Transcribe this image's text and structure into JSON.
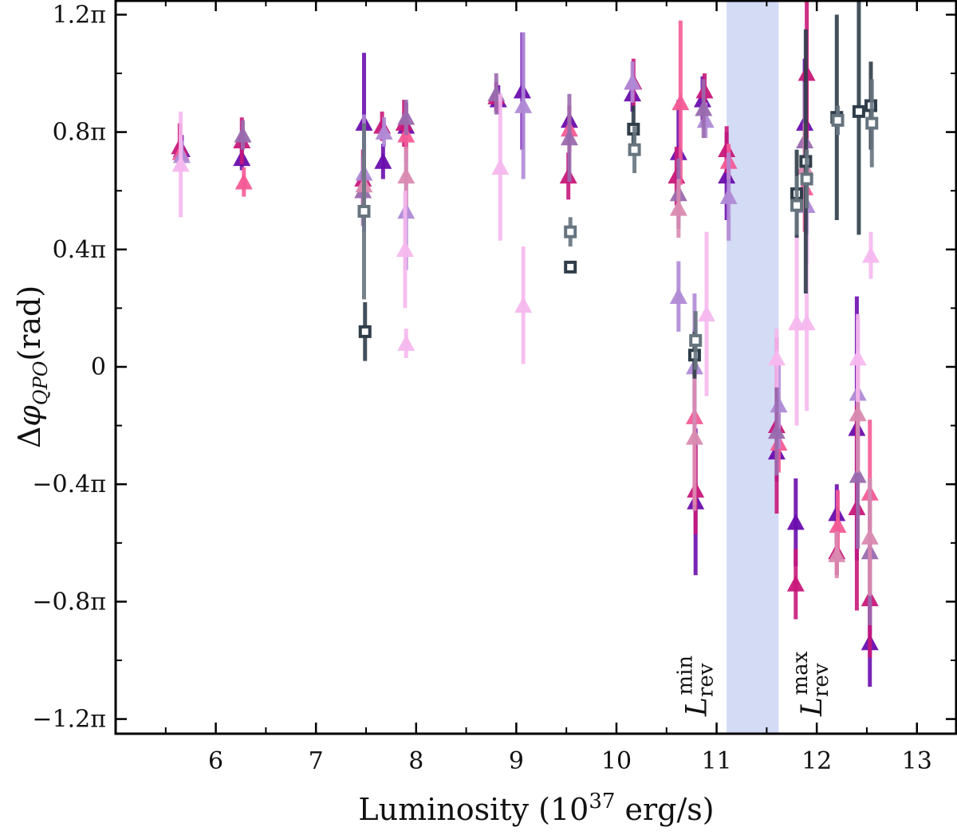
{
  "chart_data": {
    "type": "scatter",
    "xlabel": "Luminosity (10^37 erg/s)",
    "xlabel_parts": {
      "main": "Luminosity (10",
      "sup": "37",
      "tail": " erg/s)"
    },
    "ylabel_parts": {
      "delta": "Δ",
      "phi": "φ",
      "sub": "QPO",
      "unit": "(rad)"
    },
    "xlim": [
      5.0,
      13.4
    ],
    "ylim": [
      -1.25,
      1.25
    ],
    "x_ticks": [
      6,
      7,
      8,
      9,
      10,
      11,
      12,
      13
    ],
    "x_tick_labels": [
      "6",
      "7",
      "8",
      "9",
      "10",
      "11",
      "12",
      "13"
    ],
    "y_ticks": [
      1.2,
      0.8,
      0.4,
      0,
      -0.4,
      -0.8,
      -1.2
    ],
    "y_tick_labels": [
      "1.2π",
      "0.8π",
      "0.4π",
      "0",
      "−0.4π",
      "−0.8π",
      "−1.2π"
    ],
    "shaded_band": {
      "x": [
        11.1,
        11.62
      ],
      "color": "#d3dbf5"
    },
    "annotations": [
      {
        "x": 10.8,
        "base": "L",
        "sub": "rev",
        "sup": "min"
      },
      {
        "x": 11.95,
        "base": "L",
        "sub": "rev",
        "sup": "max"
      }
    ],
    "colors": {
      "purple": "#6a0dad",
      "magenta": "#c8187a",
      "pink": "#f45b96",
      "lavender": "#b08ad6",
      "mauve": "#9a6aae",
      "rose": "#d98ab0",
      "lightpink": "#f6b8ee",
      "dark": "#2f3d4a",
      "slate": "#66747e"
    },
    "series": [
      {
        "marker": "triangle",
        "color": "purple",
        "points": [
          [
            5.66,
            0.74,
            0.05
          ],
          [
            6.26,
            0.71,
            0.04
          ],
          [
            7.48,
            0.83,
            0.24
          ],
          [
            7.67,
            0.7,
            0.06
          ],
          [
            7.9,
            0.82,
            0.08
          ],
          [
            8.82,
            0.91,
            0.05
          ],
          [
            9.06,
            0.94,
            0.2
          ],
          [
            9.53,
            0.84,
            0.05
          ],
          [
            10.16,
            0.93,
            0.06
          ],
          [
            10.62,
            0.73,
            0.18
          ],
          [
            10.79,
            -0.46,
            0.25
          ],
          [
            10.86,
            0.91,
            0.08
          ],
          [
            11.1,
            0.65,
            0.15
          ],
          [
            11.6,
            -0.29,
            0.1
          ],
          [
            11.79,
            -0.53,
            0.15
          ],
          [
            11.88,
            0.83,
            0.22
          ],
          [
            12.2,
            -0.5,
            0.1
          ],
          [
            12.4,
            -0.21,
            0.45
          ],
          [
            12.53,
            -0.94,
            0.15
          ]
        ]
      },
      {
        "marker": "triangle",
        "color": "magenta",
        "points": [
          [
            5.64,
            0.75,
            0.08
          ],
          [
            6.26,
            0.77,
            0.08
          ],
          [
            7.47,
            0.64,
            0.1
          ],
          [
            7.66,
            0.82,
            0.05
          ],
          [
            7.88,
            0.83,
            0.08
          ],
          [
            8.8,
            0.92,
            0.05
          ],
          [
            9.52,
            0.65,
            0.08
          ],
          [
            10.17,
            0.97,
            0.08
          ],
          [
            10.6,
            0.65,
            0.1
          ],
          [
            10.79,
            -0.42,
            0.15
          ],
          [
            10.88,
            0.94,
            0.06
          ],
          [
            11.1,
            0.74,
            0.08
          ],
          [
            11.6,
            -0.2,
            0.3
          ],
          [
            11.79,
            -0.74,
            0.12
          ],
          [
            11.9,
            1.0,
            0.25
          ],
          [
            12.2,
            -0.63,
            0.08
          ],
          [
            12.4,
            -0.48,
            0.35
          ],
          [
            12.53,
            -0.79,
            0.2
          ]
        ]
      },
      {
        "marker": "triangle",
        "color": "pink",
        "points": [
          [
            5.65,
            0.73,
            0.06
          ],
          [
            6.28,
            0.63,
            0.05
          ],
          [
            7.9,
            0.79,
            0.09
          ],
          [
            9.53,
            0.81,
            0.08
          ],
          [
            10.64,
            0.9,
            0.28
          ],
          [
            10.78,
            -0.17,
            0.3
          ],
          [
            11.12,
            0.7,
            0.06
          ],
          [
            11.62,
            -0.26,
            0.1
          ],
          [
            11.88,
            0.61,
            0.15
          ],
          [
            12.21,
            -0.54,
            0.12
          ],
          [
            12.53,
            -0.43,
            0.25
          ]
        ]
      },
      {
        "marker": "triangle",
        "color": "lavender",
        "points": [
          [
            5.66,
            0.72,
            0.05
          ],
          [
            7.48,
            0.66,
            0.2
          ],
          [
            7.68,
            0.8,
            0.05
          ],
          [
            7.9,
            0.53,
            0.2
          ],
          [
            9.07,
            0.89,
            0.25
          ],
          [
            10.16,
            0.97,
            0.07
          ],
          [
            10.62,
            0.24,
            0.12
          ],
          [
            10.78,
            0.0,
            0.25
          ],
          [
            10.89,
            0.84,
            0.06
          ],
          [
            11.12,
            0.58,
            0.15
          ],
          [
            11.62,
            -0.13,
            0.15
          ],
          [
            11.9,
            0.55,
            0.2
          ],
          [
            12.41,
            -0.09,
            0.25
          ]
        ]
      },
      {
        "marker": "triangle",
        "color": "mauve",
        "points": [
          [
            6.27,
            0.79,
            0.05
          ],
          [
            7.47,
            0.6,
            0.12
          ],
          [
            7.9,
            0.85,
            0.06
          ],
          [
            8.8,
            0.93,
            0.07
          ],
          [
            9.53,
            0.78,
            0.15
          ],
          [
            10.62,
            0.59,
            0.12
          ],
          [
            10.87,
            0.88,
            0.1
          ],
          [
            11.6,
            -0.22,
            0.15
          ],
          [
            11.88,
            0.77,
            0.2
          ],
          [
            12.41,
            -0.37,
            0.25
          ],
          [
            12.53,
            -0.63,
            0.25
          ]
        ]
      },
      {
        "marker": "triangle",
        "color": "rose",
        "points": [
          [
            7.48,
            0.62,
            0.1
          ],
          [
            7.9,
            0.65,
            0.1
          ],
          [
            10.62,
            0.54,
            0.1
          ],
          [
            10.78,
            -0.24,
            0.25
          ],
          [
            11.88,
            0.68,
            0.15
          ],
          [
            12.2,
            -0.64,
            0.08
          ],
          [
            12.41,
            -0.16,
            0.2
          ],
          [
            12.53,
            -0.58,
            0.2
          ]
        ]
      },
      {
        "marker": "triangle",
        "color": "lightpink",
        "points": [
          [
            5.65,
            0.69,
            0.18
          ],
          [
            7.89,
            0.4,
            0.2
          ],
          [
            7.9,
            0.08,
            0.05
          ],
          [
            8.84,
            0.68,
            0.25
          ],
          [
            9.07,
            0.21,
            0.2
          ],
          [
            10.9,
            0.18,
            0.28
          ],
          [
            11.6,
            0.03,
            0.1
          ],
          [
            11.8,
            0.15,
            0.35
          ],
          [
            11.9,
            0.15,
            0.3
          ],
          [
            12.41,
            0.03,
            0.15
          ],
          [
            12.54,
            0.38,
            0.08
          ]
        ]
      },
      {
        "marker": "square",
        "color": "dark",
        "points": [
          [
            7.49,
            0.12,
            0.1
          ],
          [
            9.54,
            0.34,
            0.02
          ],
          [
            10.17,
            0.81,
            0.08
          ],
          [
            10.78,
            0.04,
            0.08
          ],
          [
            11.8,
            0.59,
            0.15
          ],
          [
            11.89,
            0.7,
            0.45
          ],
          [
            12.2,
            0.85,
            0.35
          ],
          [
            12.42,
            0.87,
            0.42
          ],
          [
            12.54,
            0.89,
            0.15
          ]
        ]
      },
      {
        "marker": "square",
        "color": "slate",
        "points": [
          [
            7.48,
            0.53,
            0.3
          ],
          [
            9.54,
            0.46,
            0.05
          ],
          [
            10.18,
            0.74,
            0.08
          ],
          [
            10.79,
            0.09,
            0.1
          ],
          [
            11.8,
            0.55,
            0.1
          ],
          [
            11.9,
            0.64,
            0.1
          ],
          [
            12.21,
            0.84,
            0.05
          ],
          [
            12.55,
            0.83,
            0.15
          ]
        ]
      }
    ]
  }
}
